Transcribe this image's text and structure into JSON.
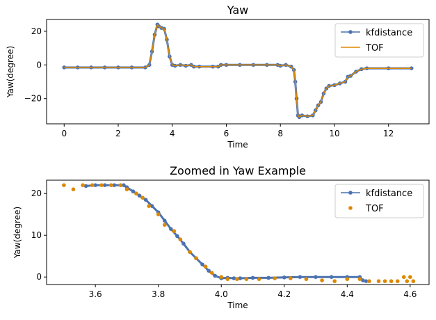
{
  "colors": {
    "kf": "#4c72b0",
    "tof": "#dd8800",
    "axis": "#000000"
  },
  "chart_data": [
    {
      "type": "line",
      "title": "Yaw",
      "xlabel": "Time",
      "ylabel": "Yaw(degree)",
      "xlim": [
        -0.65,
        13.5
      ],
      "ylim": [
        -35,
        27
      ],
      "xticks": [
        0,
        2,
        4,
        6,
        8,
        10,
        12
      ],
      "xtick_labels": [
        "0",
        "2",
        "4",
        "6",
        "8",
        "10",
        "12"
      ],
      "yticks": [
        -20,
        0,
        20
      ],
      "ytick_labels": [
        "−20",
        "0",
        "20"
      ],
      "legend": {
        "position": "top-right",
        "entries": [
          "kfdistance",
          "TOF"
        ]
      },
      "series": [
        {
          "name": "kfdistance",
          "style": "line-marker",
          "x": [
            0,
            0.5,
            1,
            1.5,
            2,
            2.5,
            3,
            3.15,
            3.25,
            3.35,
            3.45,
            3.5,
            3.6,
            3.7,
            3.8,
            3.9,
            4.0,
            4.1,
            4.3,
            4.5,
            4.7,
            4.8,
            5.0,
            5.5,
            5.7,
            5.8,
            6,
            6.5,
            7,
            7.5,
            7.9,
            8.0,
            8.2,
            8.4,
            8.5,
            8.55,
            8.6,
            8.65,
            8.7,
            8.8,
            9.0,
            9.2,
            9.3,
            9.4,
            9.5,
            9.6,
            9.7,
            9.8,
            10.0,
            10.2,
            10.4,
            10.5,
            10.6,
            10.8,
            11.0,
            11.2,
            12,
            12.85
          ],
          "y": [
            -1.5,
            -1.5,
            -1.5,
            -1.5,
            -1.5,
            -1.5,
            -1.5,
            0,
            8,
            18,
            24,
            23,
            22,
            21.5,
            15,
            5,
            0,
            -0.5,
            0,
            -0.5,
            0,
            -1,
            -1,
            -1,
            -1,
            0,
            0,
            0,
            0,
            0,
            0,
            -0.5,
            0,
            -1,
            -3,
            -10,
            -20,
            -30,
            -31,
            -30,
            -30.5,
            -30,
            -27,
            -24,
            -22,
            -17,
            -14,
            -12.5,
            -12,
            -11,
            -10,
            -7,
            -6.5,
            -4,
            -2.5,
            -2,
            -2,
            -2
          ]
        },
        {
          "name": "TOF",
          "style": "line",
          "x": [
            0,
            0.5,
            1,
            1.5,
            2,
            2.5,
            3,
            3.15,
            3.25,
            3.35,
            3.45,
            3.5,
            3.6,
            3.7,
            3.8,
            3.9,
            4.0,
            4.1,
            4.3,
            4.5,
            4.7,
            4.8,
            5.0,
            5.5,
            5.7,
            5.8,
            6,
            6.5,
            7,
            7.5,
            7.9,
            8.0,
            8.2,
            8.4,
            8.5,
            8.55,
            8.6,
            8.65,
            8.7,
            8.8,
            9.0,
            9.2,
            9.3,
            9.4,
            9.5,
            9.6,
            9.7,
            9.8,
            10.0,
            10.2,
            10.4,
            10.5,
            10.6,
            10.8,
            11.0,
            11.2,
            12,
            12.85
          ],
          "y": [
            -1.5,
            -1.5,
            -1.5,
            -1.5,
            -1.5,
            -1.5,
            -1.5,
            0,
            8,
            18,
            24,
            23,
            22,
            21.5,
            15,
            5,
            0,
            -0.5,
            0,
            -0.5,
            0,
            -1,
            -1,
            -1,
            -1,
            0,
            0,
            0,
            0,
            0,
            0,
            -0.5,
            0,
            -1,
            -3,
            -10,
            -20,
            -30,
            -31,
            -30,
            -30.5,
            -30,
            -27,
            -24,
            -22,
            -17,
            -14,
            -12.5,
            -12,
            -11,
            -10,
            -7,
            -6.5,
            -4,
            -2.5,
            -2,
            -2,
            -2
          ]
        }
      ]
    },
    {
      "type": "scatter",
      "title": "Zoomed in Yaw Example",
      "xlabel": "Time",
      "ylabel": "Yaw(degree)",
      "xlim": [
        3.445,
        4.66
      ],
      "ylim": [
        -1.8,
        23.2
      ],
      "xticks": [
        3.6,
        3.8,
        4.0,
        4.2,
        4.4,
        4.6
      ],
      "xtick_labels": [
        "3.6",
        "3.8",
        "4.0",
        "4.2",
        "4.4",
        "4.6"
      ],
      "yticks": [
        0,
        10,
        20
      ],
      "ytick_labels": [
        "0",
        "10",
        "20"
      ],
      "legend": {
        "position": "top-right",
        "entries": [
          "kfdistance",
          "TOF"
        ]
      },
      "series": [
        {
          "name": "kfdistance",
          "style": "line-marker",
          "x": [
            3.57,
            3.6,
            3.63,
            3.66,
            3.69,
            3.7,
            3.72,
            3.74,
            3.76,
            3.78,
            3.8,
            3.82,
            3.84,
            3.86,
            3.88,
            3.9,
            3.92,
            3.94,
            3.96,
            3.98,
            4.0,
            4.02,
            4.04,
            4.06,
            4.1,
            4.15,
            4.2,
            4.25,
            4.3,
            4.35,
            4.4,
            4.44,
            4.45,
            4.46
          ],
          "y": [
            21.8,
            22,
            22,
            22,
            22,
            21.5,
            20.5,
            19.5,
            18.5,
            17,
            15.5,
            13.5,
            11.5,
            9.8,
            8,
            6,
            4.5,
            3,
            1.5,
            0.3,
            -0.3,
            -0.2,
            -0.3,
            -0.3,
            -0.2,
            -0.2,
            -0.1,
            0,
            0,
            0,
            0,
            0,
            -0.8,
            -1.0
          ]
        },
        {
          "name": "TOF",
          "style": "marker",
          "x": [
            3.5,
            3.53,
            3.56,
            3.59,
            3.62,
            3.65,
            3.68,
            3.7,
            3.73,
            3.75,
            3.77,
            3.8,
            3.82,
            3.85,
            3.87,
            3.9,
            3.92,
            3.95,
            3.97,
            4.0,
            4.02,
            4.05,
            4.08,
            4.12,
            4.17,
            4.22,
            4.27,
            4.32,
            4.36,
            4.4,
            4.44,
            4.47,
            4.5,
            4.52,
            4.54,
            4.56,
            4.58,
            4.59,
            4.6,
            4.61
          ],
          "y": [
            22,
            21,
            22,
            22,
            22,
            22,
            22,
            21,
            20,
            19,
            17,
            15,
            12.5,
            11,
            9,
            6,
            4.5,
            2.5,
            1,
            0,
            -0.5,
            -0.5,
            -0.5,
            -0.5,
            -0.3,
            -0.3,
            -0.5,
            -0.8,
            -1,
            -0.5,
            -0.5,
            -1,
            -1,
            -1,
            -1,
            -1,
            0,
            -1,
            0,
            -1
          ]
        }
      ]
    }
  ]
}
